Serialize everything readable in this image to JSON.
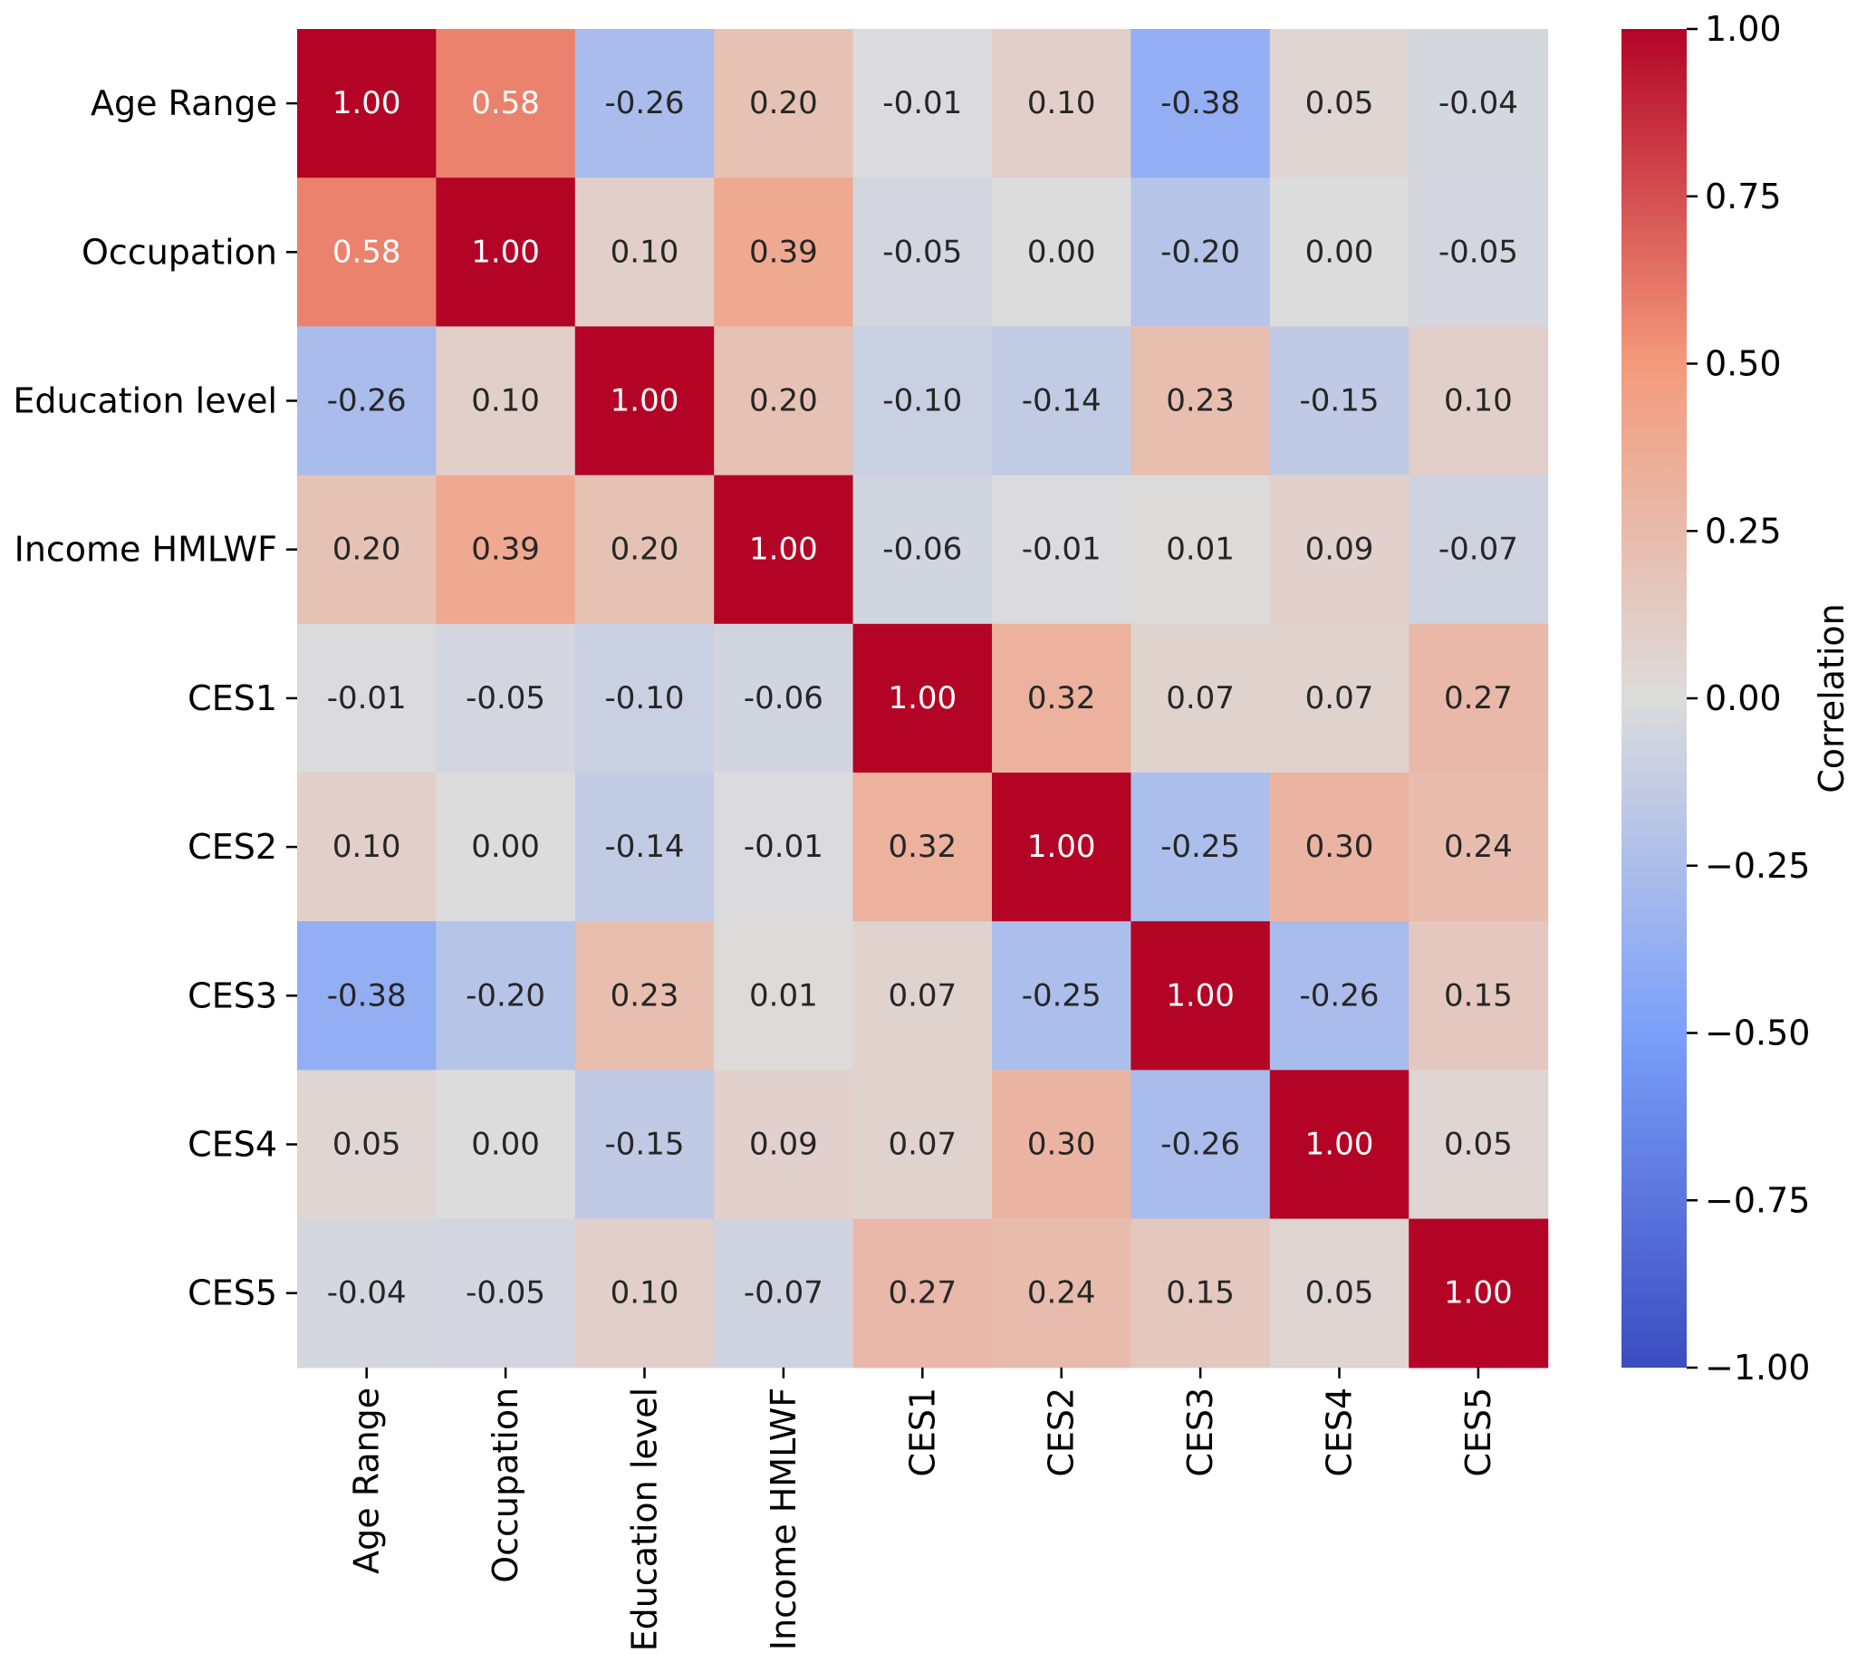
{
  "chart_data": {
    "type": "heatmap",
    "title": "",
    "xlabel": "",
    "ylabel": "",
    "rows": [
      "Age Range",
      "Occupation",
      "Education level",
      "Income HMLWF",
      "CES1",
      "CES2",
      "CES3",
      "CES4",
      "CES5"
    ],
    "columns": [
      "Age Range",
      "Occupation",
      "Education level",
      "Income HMLWF",
      "CES1",
      "CES2",
      "CES3",
      "CES4",
      "CES5"
    ],
    "values": [
      [
        1.0,
        0.58,
        -0.26,
        0.2,
        -0.01,
        0.1,
        -0.38,
        0.05,
        -0.04
      ],
      [
        0.58,
        1.0,
        0.1,
        0.39,
        -0.05,
        0.0,
        -0.2,
        0.0,
        -0.05
      ],
      [
        -0.26,
        0.1,
        1.0,
        0.2,
        -0.1,
        -0.14,
        0.23,
        -0.15,
        0.1
      ],
      [
        0.2,
        0.39,
        0.2,
        1.0,
        -0.06,
        -0.01,
        0.01,
        0.09,
        -0.07
      ],
      [
        -0.01,
        -0.05,
        -0.1,
        -0.06,
        1.0,
        0.32,
        0.07,
        0.07,
        0.27
      ],
      [
        0.1,
        0.0,
        -0.14,
        -0.01,
        0.32,
        1.0,
        -0.25,
        0.3,
        0.24
      ],
      [
        -0.38,
        -0.2,
        0.23,
        0.01,
        0.07,
        -0.25,
        1.0,
        -0.26,
        0.15
      ],
      [
        0.05,
        0.0,
        -0.15,
        0.09,
        0.07,
        0.3,
        -0.26,
        1.0,
        0.05
      ],
      [
        -0.04,
        -0.05,
        0.1,
        -0.07,
        0.27,
        0.24,
        0.15,
        0.05,
        1.0
      ]
    ],
    "value_labels": [
      [
        "1.00",
        "0.58",
        "-0.26",
        "0.20",
        "-0.01",
        "0.10",
        "-0.38",
        "0.05",
        "-0.04"
      ],
      [
        "0.58",
        "1.00",
        "0.10",
        "0.39",
        "-0.05",
        "0.00",
        "-0.20",
        "0.00",
        "-0.05"
      ],
      [
        "-0.26",
        "0.10",
        "1.00",
        "0.20",
        "-0.10",
        "-0.14",
        "0.23",
        "-0.15",
        "0.10"
      ],
      [
        "0.20",
        "0.39",
        "0.20",
        "1.00",
        "-0.06",
        "-0.01",
        "0.01",
        "0.09",
        "-0.07"
      ],
      [
        "-0.01",
        "-0.05",
        "-0.10",
        "-0.06",
        "1.00",
        "0.32",
        "0.07",
        "0.07",
        "0.27"
      ],
      [
        "0.10",
        "0.00",
        "-0.14",
        "-0.01",
        "0.32",
        "1.00",
        "-0.25",
        "0.30",
        "0.24"
      ],
      [
        "-0.38",
        "-0.20",
        "0.23",
        "0.01",
        "0.07",
        "-0.25",
        "1.00",
        "-0.26",
        "0.15"
      ],
      [
        "0.05",
        "0.00",
        "-0.15",
        "0.09",
        "0.07",
        "0.30",
        "-0.26",
        "1.00",
        "0.05"
      ],
      [
        "-0.04",
        "-0.05",
        "0.10",
        "-0.07",
        "0.27",
        "0.24",
        "0.15",
        "0.05",
        "1.00"
      ]
    ],
    "colormap": "coolwarm",
    "colormap_stops": [
      "#3b4cc0",
      "#7b9ff9",
      "#dddcdc",
      "#f49a7b",
      "#b40426"
    ],
    "vmin": -1.0,
    "vmax": 1.0,
    "colorbar": {
      "label": "Correlation",
      "ticks": [
        1.0,
        0.75,
        0.5,
        0.25,
        0.0,
        -0.25,
        -0.5,
        -0.75,
        -1.0
      ],
      "tick_labels": [
        "1.00",
        "0.75",
        "0.50",
        "0.25",
        "0.00",
        "−0.25",
        "−0.50",
        "−0.75",
        "−1.00"
      ]
    },
    "grid": false,
    "legend": "right"
  }
}
